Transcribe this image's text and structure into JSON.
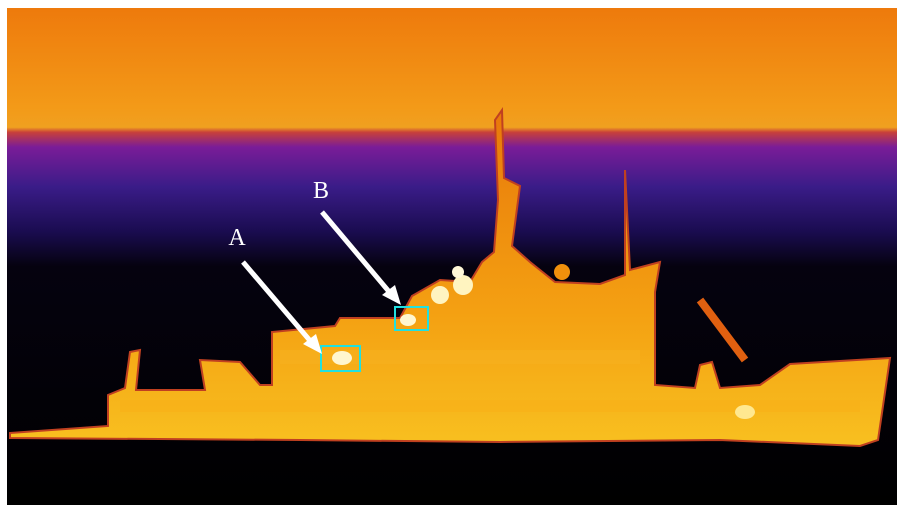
{
  "annotations": [
    {
      "label": "A"
    },
    {
      "label": "B"
    }
  ]
}
